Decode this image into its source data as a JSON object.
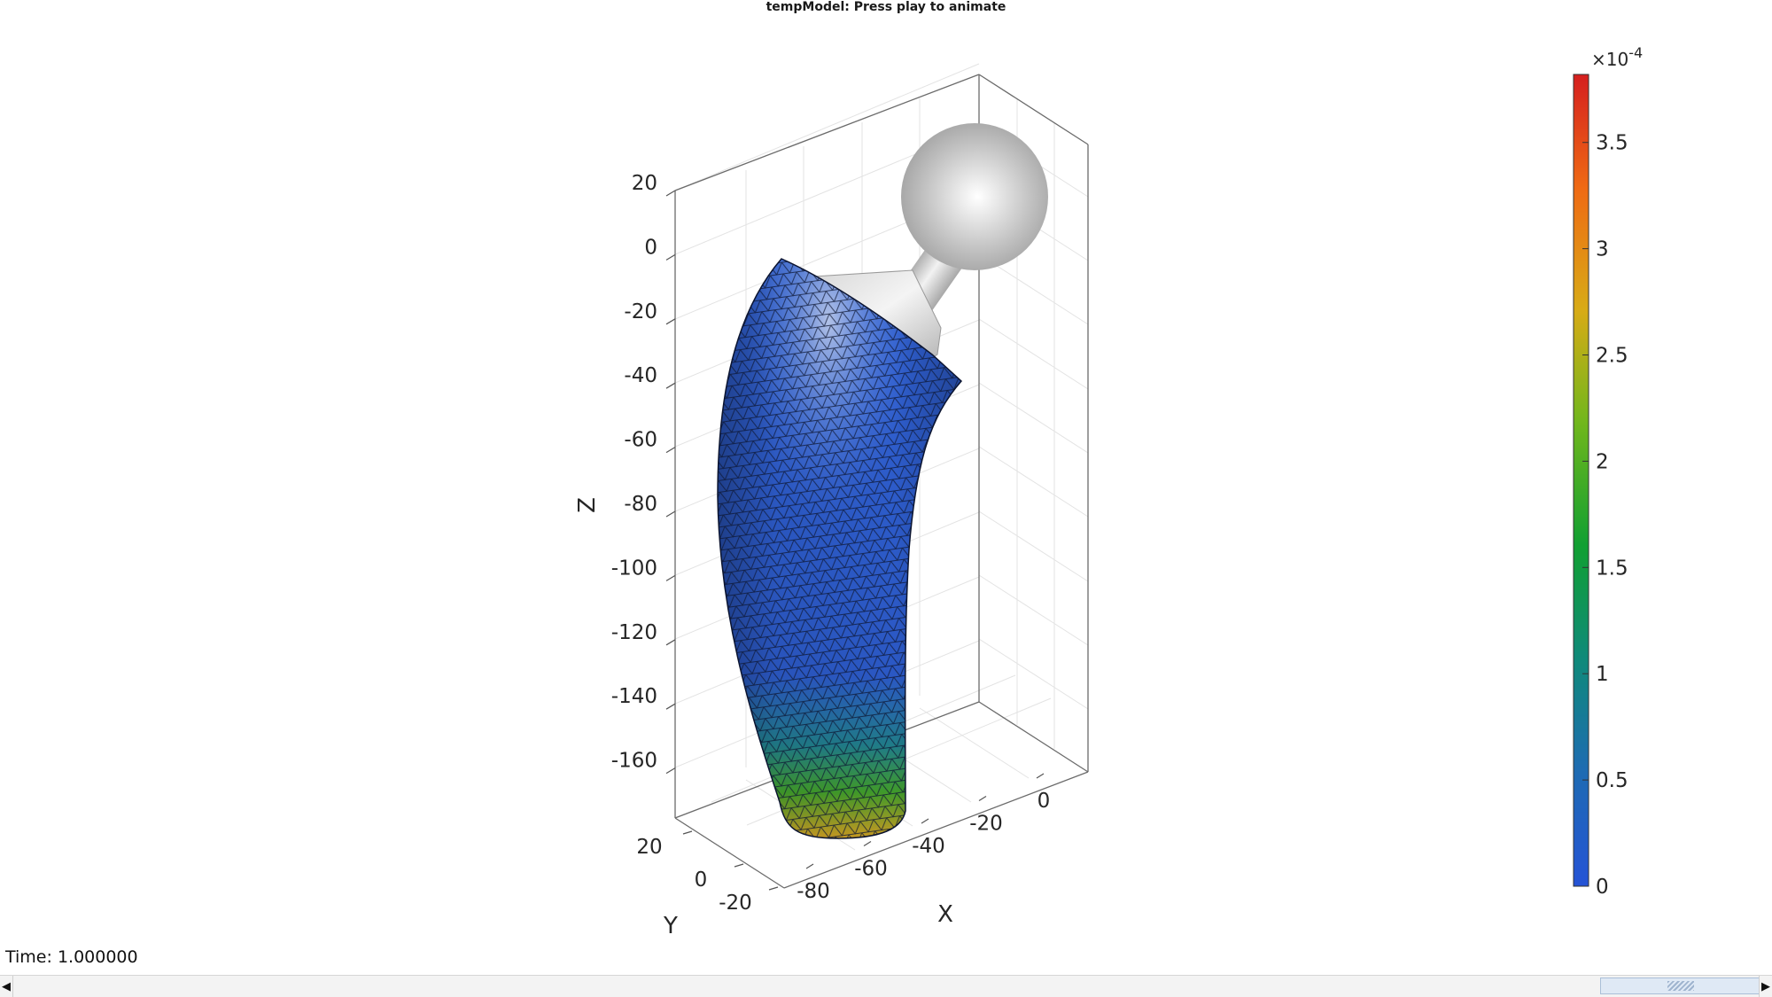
{
  "figure": {
    "title": "tempModel: Press play to animate"
  },
  "axes": {
    "xlabel": "X",
    "ylabel": "Y",
    "zlabel": "Z",
    "x_ticks": [
      "-80",
      "-60",
      "-40",
      "-20",
      "0"
    ],
    "y_ticks": [
      "-20",
      "0",
      "20"
    ],
    "z_ticks": [
      "20",
      "0",
      "-20",
      "-40",
      "-60",
      "-80",
      "-100",
      "-120",
      "-140",
      "-160"
    ],
    "grid": true
  },
  "colorbar": {
    "exponent_label": "×10",
    "exponent": "-4",
    "ticks": [
      "3.5",
      "3",
      "2.5",
      "2",
      "1.5",
      "1",
      "0.5",
      "0"
    ],
    "range": [
      0,
      3.82
    ],
    "colormap": [
      "#2553d6",
      "#1e6bb3",
      "#0f8a7a",
      "#11a032",
      "#70b71c",
      "#d8ab16",
      "#ef6a14",
      "#d51f1f"
    ]
  },
  "scene_objects": {
    "surface_name": "femoral-implant-stem",
    "head_name": "femoral-head-sphere",
    "colors": {
      "stem_low": "#2f5fd0",
      "stem_high": "#d99a20",
      "head": "#bfbfbf",
      "edges": "#0d1733"
    }
  },
  "status": {
    "time_text": "Time: 1.000000"
  },
  "scrollbar": {
    "left_arrow": "◀",
    "right_arrow": "▶"
  }
}
